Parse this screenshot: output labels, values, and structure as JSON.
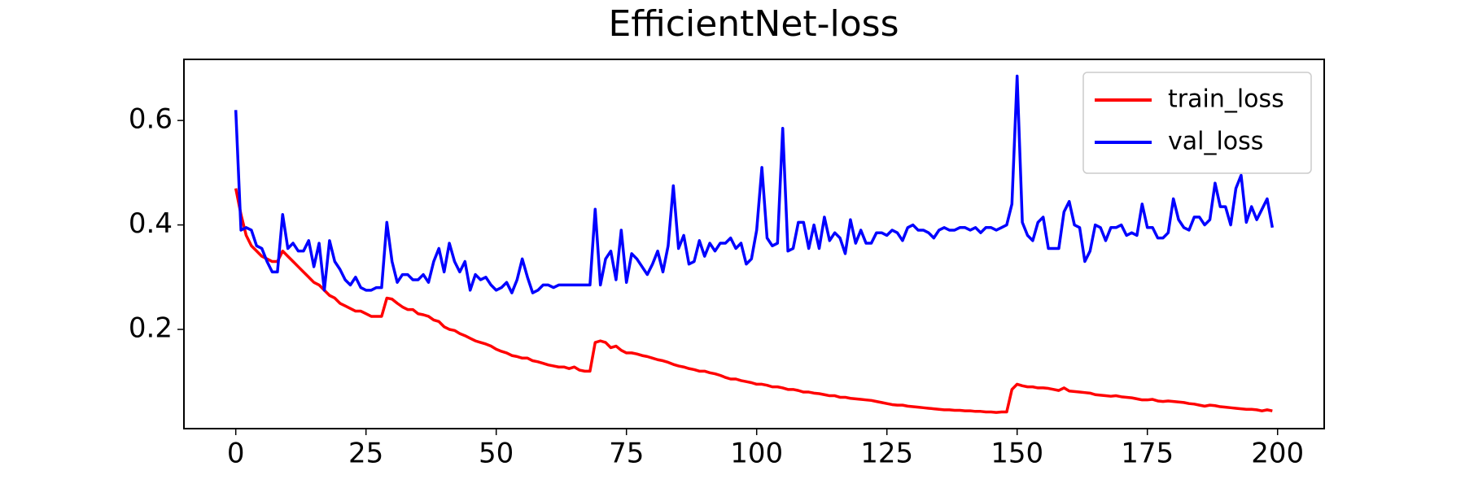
{
  "chart_data": {
    "type": "line",
    "title": "EfficientNet-loss",
    "x": [
      0,
      1,
      2,
      3,
      4,
      5,
      6,
      7,
      8,
      9,
      10,
      11,
      12,
      13,
      14,
      15,
      16,
      17,
      18,
      19,
      20,
      21,
      22,
      23,
      24,
      25,
      26,
      27,
      28,
      29,
      30,
      31,
      32,
      33,
      34,
      35,
      36,
      37,
      38,
      39,
      40,
      41,
      42,
      43,
      44,
      45,
      46,
      47,
      48,
      49,
      50,
      51,
      52,
      53,
      54,
      55,
      56,
      57,
      58,
      59,
      60,
      61,
      62,
      63,
      64,
      65,
      66,
      67,
      68,
      69,
      70,
      71,
      72,
      73,
      74,
      75,
      76,
      77,
      78,
      79,
      80,
      81,
      82,
      83,
      84,
      85,
      86,
      87,
      88,
      89,
      90,
      91,
      92,
      93,
      94,
      95,
      96,
      97,
      98,
      99,
      100,
      101,
      102,
      103,
      104,
      105,
      106,
      107,
      108,
      109,
      110,
      111,
      112,
      113,
      114,
      115,
      116,
      117,
      118,
      119,
      120,
      121,
      122,
      123,
      124,
      125,
      126,
      127,
      128,
      129,
      130,
      131,
      132,
      133,
      134,
      135,
      136,
      137,
      138,
      139,
      140,
      141,
      142,
      143,
      144,
      145,
      146,
      147,
      148,
      149,
      150,
      151,
      152,
      153,
      154,
      155,
      156,
      157,
      158,
      159,
      160,
      161,
      162,
      163,
      164,
      165,
      166,
      167,
      168,
      169,
      170,
      171,
      172,
      173,
      174,
      175,
      176,
      177,
      178,
      179,
      180,
      181,
      182,
      183,
      184,
      185,
      186,
      187,
      188,
      189,
      190,
      191,
      192,
      193,
      194,
      195,
      196,
      197,
      198,
      199
    ],
    "series": [
      {
        "name": "train_loss",
        "color": "#ff0000",
        "values": [
          0.47,
          0.42,
          0.38,
          0.36,
          0.35,
          0.34,
          0.335,
          0.33,
          0.33,
          0.35,
          0.34,
          0.33,
          0.32,
          0.31,
          0.3,
          0.29,
          0.285,
          0.275,
          0.265,
          0.26,
          0.25,
          0.245,
          0.24,
          0.235,
          0.235,
          0.23,
          0.225,
          0.225,
          0.225,
          0.26,
          0.258,
          0.25,
          0.243,
          0.238,
          0.238,
          0.23,
          0.228,
          0.225,
          0.218,
          0.215,
          0.205,
          0.2,
          0.198,
          0.192,
          0.188,
          0.183,
          0.178,
          0.175,
          0.172,
          0.168,
          0.162,
          0.158,
          0.155,
          0.15,
          0.148,
          0.145,
          0.145,
          0.14,
          0.138,
          0.135,
          0.132,
          0.13,
          0.128,
          0.128,
          0.125,
          0.128,
          0.122,
          0.12,
          0.12,
          0.175,
          0.178,
          0.175,
          0.165,
          0.168,
          0.16,
          0.155,
          0.155,
          0.153,
          0.15,
          0.148,
          0.145,
          0.142,
          0.14,
          0.137,
          0.133,
          0.13,
          0.128,
          0.125,
          0.123,
          0.12,
          0.12,
          0.117,
          0.115,
          0.112,
          0.108,
          0.105,
          0.105,
          0.102,
          0.1,
          0.098,
          0.095,
          0.095,
          0.093,
          0.09,
          0.09,
          0.088,
          0.085,
          0.085,
          0.083,
          0.08,
          0.08,
          0.078,
          0.077,
          0.075,
          0.073,
          0.073,
          0.07,
          0.07,
          0.068,
          0.067,
          0.066,
          0.065,
          0.064,
          0.062,
          0.06,
          0.058,
          0.056,
          0.055,
          0.055,
          0.053,
          0.052,
          0.051,
          0.05,
          0.049,
          0.048,
          0.047,
          0.046,
          0.046,
          0.045,
          0.045,
          0.044,
          0.044,
          0.043,
          0.043,
          0.042,
          0.042,
          0.041,
          0.042,
          0.042,
          0.085,
          0.095,
          0.092,
          0.09,
          0.09,
          0.088,
          0.088,
          0.087,
          0.085,
          0.083,
          0.088,
          0.082,
          0.081,
          0.08,
          0.079,
          0.078,
          0.075,
          0.074,
          0.073,
          0.072,
          0.073,
          0.071,
          0.07,
          0.069,
          0.067,
          0.065,
          0.065,
          0.066,
          0.063,
          0.062,
          0.063,
          0.062,
          0.061,
          0.06,
          0.058,
          0.057,
          0.055,
          0.053,
          0.055,
          0.054,
          0.052,
          0.051,
          0.05,
          0.049,
          0.048,
          0.047,
          0.047,
          0.046,
          0.044,
          0.046,
          0.044
        ]
      },
      {
        "name": "val_loss",
        "color": "#0000ff",
        "values": [
          0.62,
          0.39,
          0.395,
          0.39,
          0.36,
          0.355,
          0.33,
          0.31,
          0.31,
          0.42,
          0.355,
          0.365,
          0.35,
          0.35,
          0.37,
          0.32,
          0.365,
          0.275,
          0.37,
          0.33,
          0.315,
          0.295,
          0.285,
          0.3,
          0.28,
          0.275,
          0.275,
          0.28,
          0.28,
          0.405,
          0.33,
          0.29,
          0.305,
          0.305,
          0.295,
          0.295,
          0.305,
          0.29,
          0.33,
          0.355,
          0.31,
          0.365,
          0.33,
          0.31,
          0.33,
          0.275,
          0.305,
          0.295,
          0.3,
          0.285,
          0.275,
          0.28,
          0.29,
          0.27,
          0.295,
          0.335,
          0.3,
          0.27,
          0.275,
          0.285,
          0.285,
          0.28,
          0.285,
          0.285,
          0.285,
          0.285,
          0.285,
          0.285,
          0.285,
          0.43,
          0.285,
          0.335,
          0.35,
          0.295,
          0.39,
          0.29,
          0.345,
          0.335,
          0.32,
          0.305,
          0.325,
          0.35,
          0.31,
          0.36,
          0.475,
          0.355,
          0.38,
          0.325,
          0.33,
          0.37,
          0.34,
          0.365,
          0.35,
          0.365,
          0.365,
          0.375,
          0.355,
          0.365,
          0.325,
          0.335,
          0.39,
          0.51,
          0.375,
          0.36,
          0.365,
          0.585,
          0.35,
          0.355,
          0.405,
          0.405,
          0.355,
          0.4,
          0.355,
          0.415,
          0.37,
          0.385,
          0.375,
          0.345,
          0.41,
          0.365,
          0.39,
          0.365,
          0.365,
          0.385,
          0.385,
          0.38,
          0.39,
          0.385,
          0.37,
          0.395,
          0.4,
          0.39,
          0.39,
          0.385,
          0.375,
          0.39,
          0.395,
          0.39,
          0.39,
          0.395,
          0.395,
          0.39,
          0.395,
          0.385,
          0.395,
          0.395,
          0.39,
          0.395,
          0.4,
          0.44,
          0.685,
          0.405,
          0.38,
          0.37,
          0.405,
          0.415,
          0.355,
          0.355,
          0.355,
          0.425,
          0.445,
          0.4,
          0.395,
          0.33,
          0.35,
          0.4,
          0.395,
          0.37,
          0.395,
          0.395,
          0.4,
          0.38,
          0.385,
          0.38,
          0.44,
          0.395,
          0.395,
          0.375,
          0.375,
          0.385,
          0.45,
          0.41,
          0.395,
          0.39,
          0.415,
          0.415,
          0.4,
          0.41,
          0.48,
          0.435,
          0.435,
          0.4,
          0.47,
          0.495,
          0.405,
          0.435,
          0.41,
          0.43,
          0.45,
          0.395
        ]
      }
    ],
    "xlim": [
      -9.95,
      208.95
    ],
    "ylim": [
      0.01,
      0.717
    ],
    "xticks": [
      0,
      25,
      50,
      75,
      100,
      125,
      150,
      175,
      200
    ],
    "yticks": [
      0.2,
      0.4,
      0.6
    ],
    "legend": "upper right"
  }
}
